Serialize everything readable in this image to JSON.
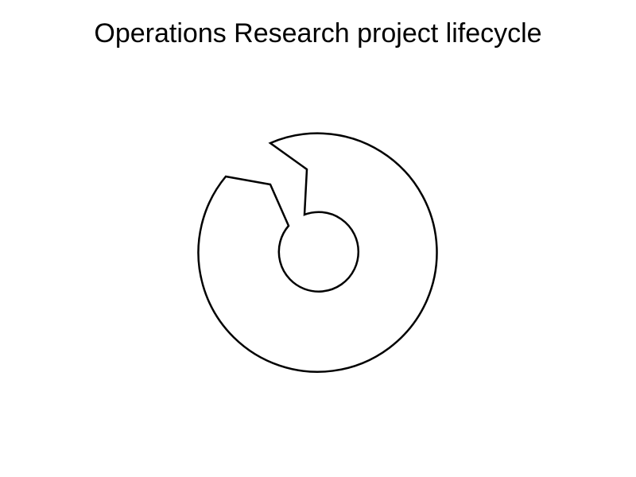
{
  "title": "Operations Research project lifecycle",
  "diagram": {
    "type": "cycle",
    "shape": "ring with arrow gap",
    "stroke_color": "#000000",
    "fill_color": "#ffffff"
  }
}
